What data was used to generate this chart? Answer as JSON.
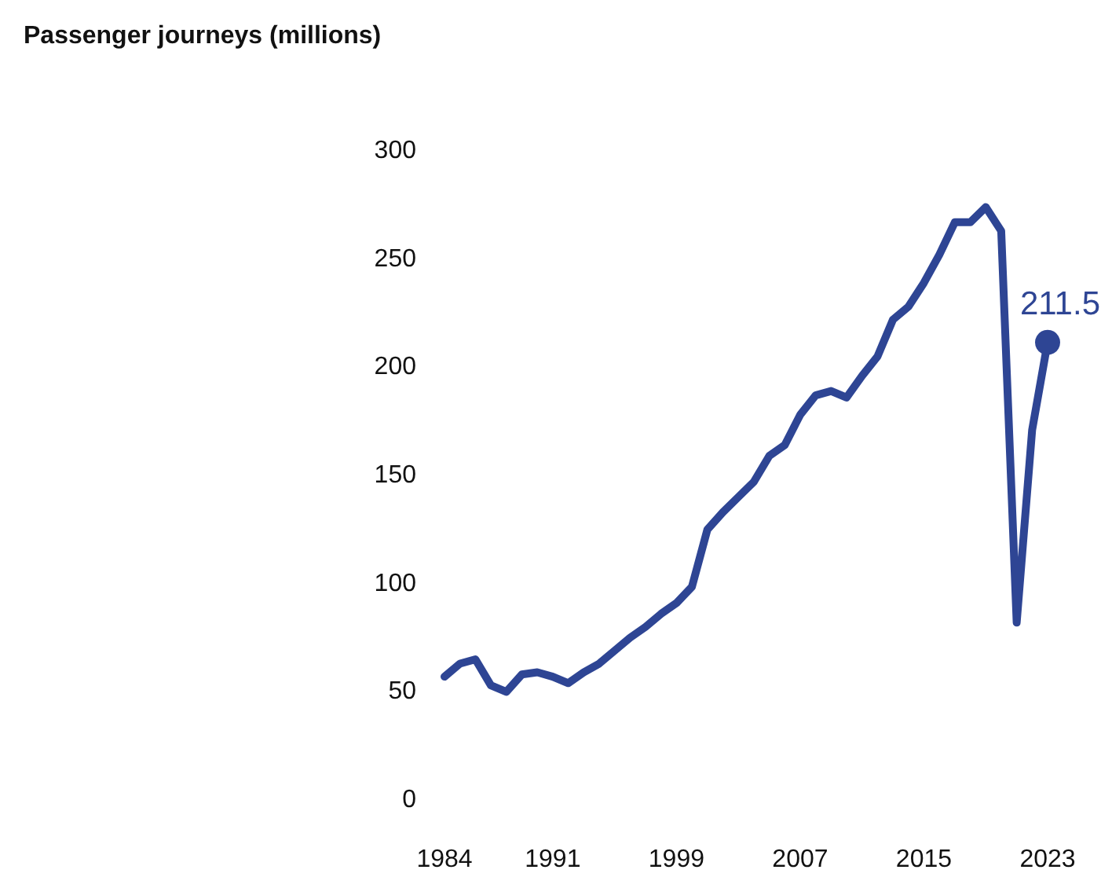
{
  "chart_data": {
    "type": "line",
    "title": "Passenger journeys (millions)",
    "x": [
      1984,
      1985,
      1986,
      1987,
      1988,
      1989,
      1990,
      1991,
      1992,
      1993,
      1994,
      1995,
      1996,
      1997,
      1998,
      1999,
      2000,
      2001,
      2002,
      2003,
      2004,
      2005,
      2006,
      2007,
      2008,
      2009,
      2010,
      2011,
      2012,
      2013,
      2014,
      2015,
      2016,
      2017,
      2018,
      2019,
      2020,
      2021,
      2022,
      2023
    ],
    "series": [
      {
        "color": "#2e4594",
        "values": [
          57,
          63,
          65,
          53,
          50,
          58,
          59,
          57,
          54,
          59,
          63,
          69,
          75,
          80,
          86,
          91,
          98.5,
          125,
          133,
          140,
          147,
          159,
          164,
          178,
          187,
          189,
          186,
          196,
          205,
          222,
          228,
          239,
          252,
          267,
          267,
          274,
          263,
          82,
          171,
          211.5
        ],
        "value_labels": [
          null,
          null,
          null,
          null,
          null,
          null,
          null,
          null,
          null,
          null,
          null,
          null,
          null,
          null,
          null,
          null,
          null,
          null,
          null,
          null,
          null,
          null,
          null,
          null,
          null,
          null,
          null,
          null,
          null,
          null,
          null,
          null,
          null,
          null,
          null,
          null,
          null,
          null,
          null,
          "211.5"
        ]
      }
    ],
    "xlim": [
      1984,
      2023
    ],
    "xticks": [
      1984,
      1991,
      1999,
      2007,
      2015,
      2023
    ],
    "ylim": [
      0,
      300
    ],
    "yticks": [
      0,
      50,
      100,
      150,
      200,
      250,
      300
    ],
    "grid": false,
    "marker": "none",
    "line_style": "solid"
  }
}
